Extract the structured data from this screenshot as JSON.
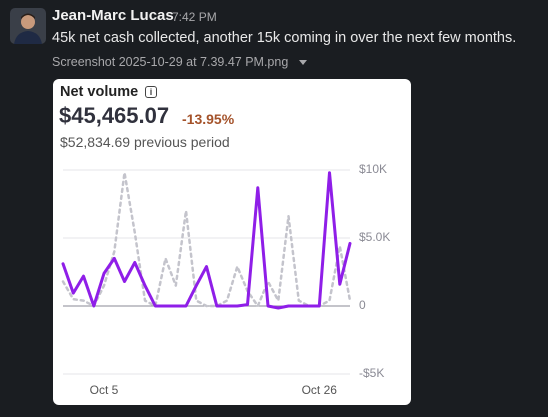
{
  "message": {
    "author": "Jean-Marc Lucas",
    "time": "7:42 PM",
    "text": "45k net cash collected, another 15k coming in over the next few months.",
    "attachment": "Screenshot 2025-10-29 at 7.39.47 PM.png"
  },
  "card": {
    "amount": "$45,465.07",
    "change": "-13.95%",
    "comparison": "$52,834.69 previous period"
  },
  "chart_data": {
    "type": "line",
    "title": "Net volume",
    "categories": [
      null,
      null,
      null,
      null,
      "Oct 5",
      null,
      null,
      null,
      null,
      null,
      null,
      null,
      null,
      null,
      null,
      null,
      null,
      null,
      null,
      null,
      null,
      null,
      null,
      null,
      null,
      "Oct 26",
      null,
      null,
      null
    ],
    "series": [
      {
        "color": "#c4c4cc",
        "dashed": true,
        "values": [
          1800,
          500,
          400,
          0,
          1500,
          4000,
          9800,
          5400,
          400,
          0,
          3500,
          1500,
          7000,
          400,
          0,
          0,
          400,
          2900,
          1100,
          0,
          1800,
          400,
          6600,
          400,
          0,
          0,
          400,
          4400,
          400
        ]
      },
      {
        "color": "#8f1ee8",
        "dashed": false,
        "values": [
          3100,
          950,
          2200,
          0,
          2400,
          3500,
          1800,
          3200,
          1500,
          0,
          0,
          0,
          0,
          1500,
          2900,
          0,
          0,
          0,
          100,
          8700,
          0,
          -150,
          0,
          0,
          0,
          0,
          9800,
          1600,
          4600
        ]
      }
    ],
    "ylim": [
      -5000,
      10000
    ],
    "yticks": [
      {
        "value": 10000,
        "label": "$10K"
      },
      {
        "value": 5000,
        "label": "$5.0K"
      },
      0,
      {
        "value": -5000,
        "label": "-$5K"
      }
    ],
    "grid": true
  }
}
